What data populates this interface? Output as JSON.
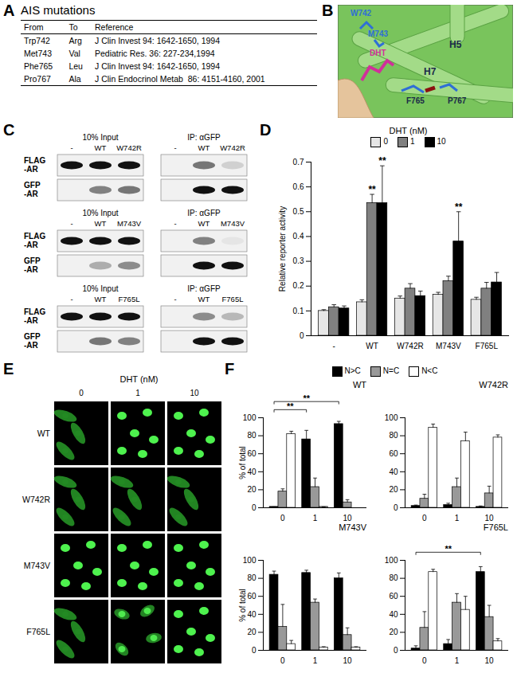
{
  "panel_labels": [
    "A",
    "B",
    "C",
    "D",
    "E",
    "F"
  ],
  "table": {
    "title": "AIS mutations",
    "header": [
      "From",
      "To",
      "Reference"
    ],
    "rows": [
      [
        "Trp742",
        "Arg",
        "J Clin Invest 94: 1642-1650, 1994"
      ],
      [
        "Met743",
        "Val",
        "Pediatric Res. 36: 227-234,1994"
      ],
      [
        "Phe765",
        "Leu",
        "J Clin Invest 94: 1642-1650, 1994"
      ],
      [
        "Pro767",
        "Ala",
        "J Clin Endocrinol Metab  86: 4151-4160, 2001"
      ]
    ]
  },
  "structure": {
    "labels": [
      "W742",
      "M743",
      "DHT",
      "H5",
      "H7",
      "F765",
      "P767"
    ]
  },
  "blots": {
    "sections": [
      "10% Input",
      "IP: αGFP"
    ],
    "rows": [
      [
        "FLAG",
        "-AR"
      ],
      [
        "GFP",
        "-AR"
      ]
    ],
    "groups": [
      {
        "lanes": [
          "-",
          "WT",
          "W742R"
        ],
        "signal": [
          [
            1,
            1,
            1,
            0,
            0.55,
            0.15
          ],
          [
            0,
            0.5,
            0.55,
            0,
            1,
            1
          ]
        ]
      },
      {
        "lanes": [
          "-",
          "WT",
          "M743V"
        ],
        "signal": [
          [
            1,
            1,
            1,
            0,
            0.5,
            0.05
          ],
          [
            0,
            0.3,
            0.45,
            0,
            1,
            1
          ]
        ]
      },
      {
        "lanes": [
          "-",
          "WT",
          "F765L"
        ],
        "signal": [
          [
            1,
            1,
            1,
            0,
            0.45,
            0.25
          ],
          [
            0,
            0.55,
            0.5,
            0,
            1,
            1
          ]
        ]
      }
    ]
  },
  "images": {
    "title": "DHT (nM)",
    "columns": [
      "0",
      "1",
      "10"
    ],
    "rows": [
      "WT",
      "W742R",
      "M743V",
      "F765L"
    ]
  },
  "chart_data": [
    {
      "type": "bar",
      "legend_title": "DHT (nM)",
      "legend": "top",
      "ylabel": "Relative reporter activity",
      "categories": [
        "-",
        "WT",
        "W742R",
        "M743V",
        "F765L"
      ],
      "series": [
        {
          "name": "0",
          "color": "#e6e6e6",
          "values": [
            0.1,
            0.135,
            0.15,
            0.165,
            0.145
          ],
          "errors": [
            0.005,
            0.01,
            0.01,
            0.01,
            0.01
          ]
        },
        {
          "name": "1",
          "color": "#808080",
          "values": [
            0.115,
            0.535,
            0.19,
            0.22,
            0.19
          ],
          "errors": [
            0.01,
            0.035,
            0.02,
            0.02,
            0.025
          ]
        },
        {
          "name": "10",
          "color": "#000000",
          "values": [
            0.11,
            0.535,
            0.16,
            0.38,
            0.215
          ],
          "errors": [
            0.01,
            0.15,
            0.02,
            0.12,
            0.04
          ]
        }
      ],
      "ylim": [
        0,
        0.7
      ],
      "yticks": [
        0,
        0.1,
        0.2,
        0.3,
        0.4,
        0.5,
        0.6,
        0.7
      ],
      "annotations": [
        {
          "category": "WT",
          "series": "1",
          "label": "**"
        },
        {
          "category": "WT",
          "series": "10",
          "label": "**"
        },
        {
          "category": "M743V",
          "series": "10",
          "label": "**"
        }
      ]
    },
    {
      "type": "bar",
      "title": "WT",
      "legend": "top",
      "ylabel": "% of total",
      "categories": [
        "0",
        "1",
        "10"
      ],
      "series": [
        {
          "name": "N>C",
          "color": "#000000",
          "values": [
            1,
            76,
            93
          ],
          "errors": [
            0,
            10,
            3
          ]
        },
        {
          "name": "N=C",
          "color": "#999999",
          "values": [
            18,
            23,
            6
          ],
          "errors": [
            3,
            10,
            3
          ]
        },
        {
          "name": "N<C",
          "color": "#ffffff",
          "values": [
            82,
            1,
            0
          ],
          "errors": [
            3,
            0,
            0
          ]
        }
      ],
      "ylim": [
        0,
        100
      ],
      "yticks": [
        0,
        20,
        40,
        60,
        80,
        100
      ],
      "brackets": [
        {
          "from": "0",
          "to": "1",
          "series": "N>C",
          "label": "**"
        },
        {
          "from": "0",
          "to": "10",
          "series": "N>C",
          "label": "**"
        }
      ]
    },
    {
      "type": "bar",
      "title": "W742R",
      "categories": [
        "0",
        "1",
        "10"
      ],
      "series": [
        {
          "name": "N>C",
          "color": "#000000",
          "values": [
            2,
            3,
            1
          ],
          "errors": [
            1,
            2,
            1
          ]
        },
        {
          "name": "N=C",
          "color": "#999999",
          "values": [
            10,
            23,
            16
          ],
          "errors": [
            5,
            10,
            8
          ]
        },
        {
          "name": "N<C",
          "color": "#ffffff",
          "values": [
            89,
            74,
            78
          ],
          "errors": [
            4,
            10,
            3
          ]
        }
      ],
      "ylim": [
        0,
        100
      ],
      "yticks": [
        0,
        20,
        40,
        60,
        80,
        100
      ]
    },
    {
      "type": "bar",
      "title": "M743V",
      "ylabel": "% of total",
      "categories": [
        "0",
        "1",
        "10"
      ],
      "series": [
        {
          "name": "N>C",
          "color": "#000000",
          "values": [
            84,
            86,
            80
          ],
          "errors": [
            4,
            3,
            6
          ]
        },
        {
          "name": "N=C",
          "color": "#999999",
          "values": [
            26,
            53,
            17
          ],
          "errors": [
            25,
            4,
            8
          ]
        },
        {
          "name": "N<C",
          "color": "#ffffff",
          "values": [
            7,
            3,
            3
          ],
          "errors": [
            4,
            1,
            1
          ]
        }
      ],
      "ylim": [
        0,
        100
      ],
      "yticks": [
        0,
        20,
        40,
        60,
        80,
        100
      ]
    },
    {
      "type": "bar",
      "title": "F765L",
      "categories": [
        "0",
        "1",
        "10"
      ],
      "series": [
        {
          "name": "N>C",
          "color": "#000000",
          "values": [
            2,
            7,
            87
          ],
          "errors": [
            3,
            5,
            6
          ]
        },
        {
          "name": "N=C",
          "color": "#999999",
          "values": [
            25,
            53,
            37
          ],
          "errors": [
            18,
            10,
            13
          ]
        },
        {
          "name": "N<C",
          "color": "#ffffff",
          "values": [
            87,
            45,
            10
          ],
          "errors": [
            3,
            15,
            3
          ]
        }
      ],
      "ylim": [
        0,
        100
      ],
      "yticks": [
        0,
        20,
        40,
        60,
        80,
        100
      ],
      "brackets": [
        {
          "from": "0",
          "to": "10",
          "series": "N>C",
          "label": "**"
        }
      ]
    }
  ]
}
